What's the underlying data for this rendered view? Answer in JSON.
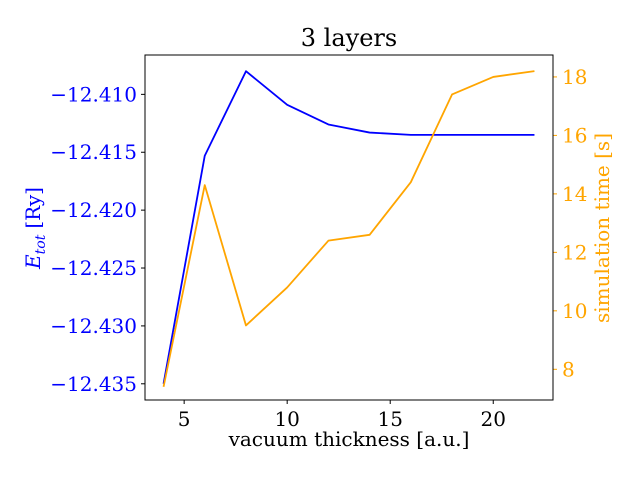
{
  "chart_data": {
    "type": "line",
    "title": "3 layers",
    "xlabel": "vacuum thickness [a.u.]",
    "y_left_label": {
      "base": "E",
      "sub": "tot",
      "unit": "[Ry]"
    },
    "y_right_label": "simulation time [s]",
    "xlim": [
      3.1,
      22.9
    ],
    "ylim_left": [
      -12.4364,
      -12.4066
    ],
    "ylim_right": [
      6.95,
      18.75
    ],
    "x_ticks": [
      5,
      10,
      15,
      20
    ],
    "y_left_ticks": [
      -12.41,
      -12.415,
      -12.42,
      -12.425,
      -12.43,
      -12.435
    ],
    "y_left_tick_labels": [
      "−12.410",
      "−12.415",
      "−12.420",
      "−12.425",
      "−12.430",
      "−12.435"
    ],
    "y_right_ticks": [
      8,
      10,
      12,
      14,
      16,
      18
    ],
    "grid": false,
    "legend": "none",
    "colors": {
      "left": "#0000ff",
      "right": "#ffa500",
      "axis": "#000000"
    },
    "series": [
      {
        "axis": "left",
        "color": "#0000ff",
        "x": [
          4,
          6,
          8,
          10,
          12,
          14,
          16,
          18,
          20,
          22
        ],
        "values": [
          -12.435,
          -12.4153,
          -12.408,
          -12.4109,
          -12.4126,
          -12.4133,
          -12.4135,
          -12.4135,
          -12.4135,
          -12.4135
        ]
      },
      {
        "axis": "right",
        "color": "#ffa500",
        "x": [
          4,
          6,
          8,
          10,
          12,
          14,
          16,
          18,
          20,
          22
        ],
        "values": [
          7.4,
          14.3,
          9.5,
          10.8,
          12.4,
          12.6,
          14.4,
          17.4,
          18.0,
          18.2
        ]
      }
    ]
  }
}
